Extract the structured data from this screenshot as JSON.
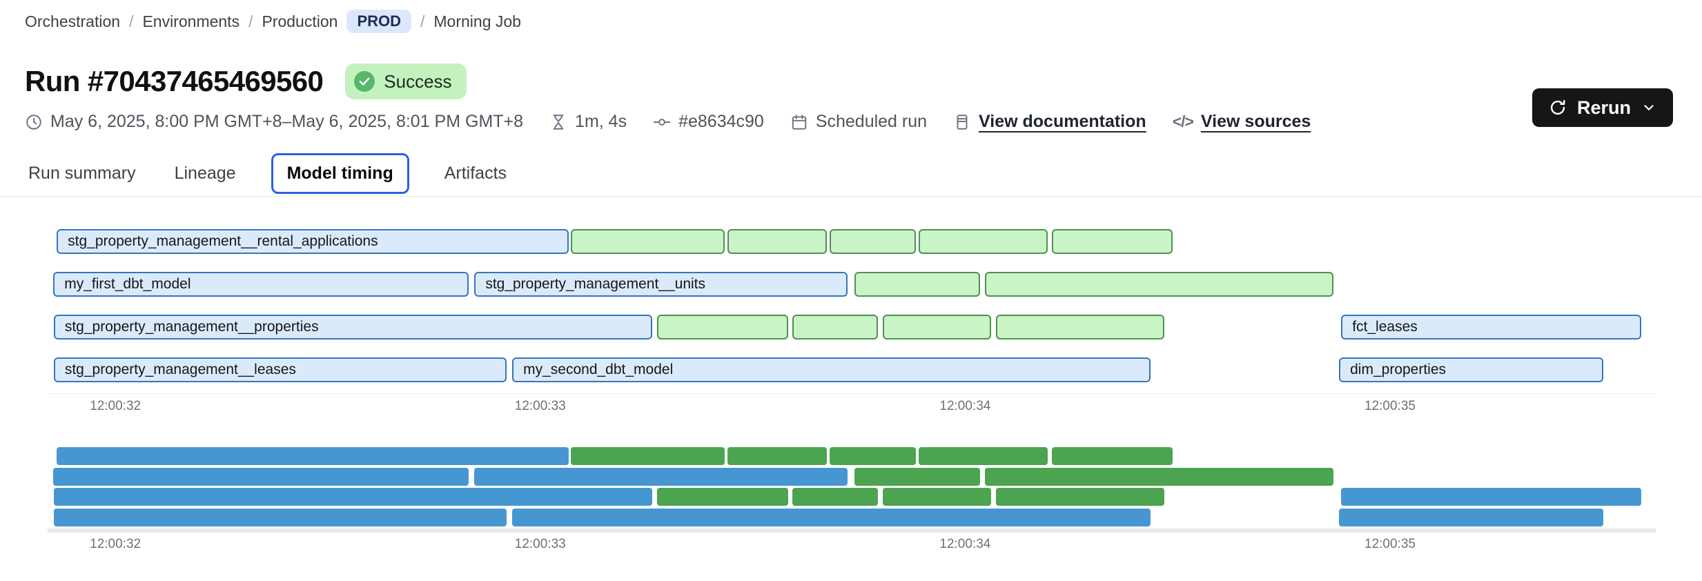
{
  "breadcrumb": {
    "items": [
      "Orchestration",
      "Environments",
      "Production",
      "Morning Job"
    ],
    "separator": "/",
    "env_badge": "PROD"
  },
  "header": {
    "title": "Run #70437465469560",
    "status": "Success"
  },
  "actions": {
    "rerun_label": "Rerun"
  },
  "meta": {
    "time_range": "May 6, 2025, 8:00 PM GMT+8–May 6, 2025, 8:01 PM GMT+8",
    "duration": "1m, 4s",
    "commit": "#e8634c90",
    "trigger": "Scheduled run",
    "doc_link": "View documentation",
    "sources_link": "View sources",
    "code_glyph": "</>"
  },
  "tabs": {
    "items": [
      "Run summary",
      "Lineage",
      "Model timing",
      "Artifacts"
    ],
    "selected": "Model timing"
  },
  "colors": {
    "accent_blue": "#2d5fe3",
    "badge_blue_bg": "#dbe7fd",
    "badge_blue_text": "#1c2e52",
    "success_bg": "#c3f2bf",
    "success_icon": "#56b769",
    "button_dark_bg": "#161619",
    "bar_blue_fill": "#dbeafa",
    "bar_blue_border": "#3377bd",
    "bar_green_fill": "#c9f4c5",
    "bar_green_border": "#4d9150",
    "minimap_blue": "#4697d1",
    "minimap_green": "#4ca451"
  },
  "chart_data": {
    "type": "gantt",
    "description": "Model timing gantt: blue bars are models (labeled), green bars are tests; a solid-color minimap below mirrors the same rows; times shown on a 12:00:32–12:00:35 axis",
    "x_axis": {
      "domain_seconds": [
        31.839,
        35.627
      ],
      "ticks": [
        {
          "t": 32,
          "label": "12:00:32"
        },
        {
          "t": 33,
          "label": "12:00:33"
        },
        {
          "t": 34,
          "label": "12:00:34"
        },
        {
          "t": 35,
          "label": "12:00:35"
        }
      ]
    },
    "rows": [
      {
        "bars": [
          {
            "label": "stg_property_management__rental_applications",
            "start": 31.862,
            "end": 33.067,
            "color": "blue"
          },
          {
            "start": 33.072,
            "end": 33.434,
            "color": "green"
          },
          {
            "start": 33.44,
            "end": 33.674,
            "color": "green"
          },
          {
            "start": 33.681,
            "end": 33.884,
            "color": "green"
          },
          {
            "start": 33.89,
            "end": 34.194,
            "color": "green"
          },
          {
            "start": 34.204,
            "end": 34.488,
            "color": "green"
          }
        ]
      },
      {
        "bars": [
          {
            "label": "my_first_dbt_model",
            "start": 31.854,
            "end": 32.832,
            "color": "blue"
          },
          {
            "label": "stg_property_management__units",
            "start": 32.845,
            "end": 33.723,
            "color": "blue"
          },
          {
            "start": 33.74,
            "end": 34.035,
            "color": "green"
          },
          {
            "start": 34.046,
            "end": 34.867,
            "color": "green"
          }
        ]
      },
      {
        "bars": [
          {
            "label": "stg_property_management__properties",
            "start": 31.855,
            "end": 33.263,
            "color": "blue"
          },
          {
            "start": 33.275,
            "end": 33.583,
            "color": "green"
          },
          {
            "start": 33.593,
            "end": 33.795,
            "color": "green"
          },
          {
            "start": 33.806,
            "end": 34.061,
            "color": "green"
          },
          {
            "start": 34.072,
            "end": 34.469,
            "color": "green"
          },
          {
            "label": "fct_leases",
            "start": 34.885,
            "end": 35.591,
            "color": "blue"
          }
        ]
      },
      {
        "bars": [
          {
            "label": "stg_property_management__leases",
            "start": 31.855,
            "end": 32.921,
            "color": "blue"
          },
          {
            "label": "my_second_dbt_model",
            "start": 32.934,
            "end": 34.436,
            "color": "blue"
          },
          {
            "label": "dim_properties",
            "start": 34.88,
            "end": 35.502,
            "color": "blue"
          }
        ]
      }
    ],
    "minimap": {
      "mirrors_rows": true
    }
  }
}
